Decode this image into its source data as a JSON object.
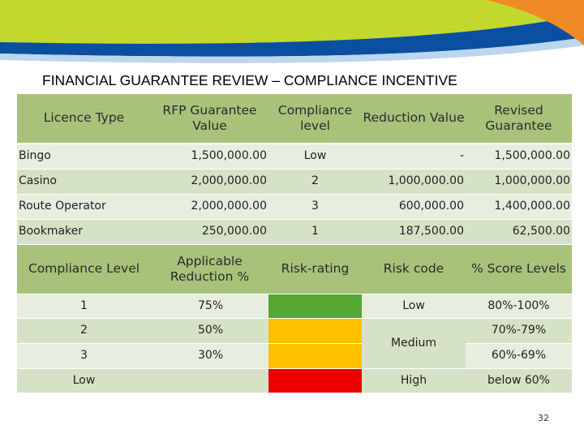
{
  "page": {
    "title": "FINANCIAL GUARANTEE REVIEW – COMPLIANCE INCENTIVE",
    "page_number": "32",
    "banner_colors": {
      "green": "#c3d82c",
      "blue": "#0a4fa0",
      "orange": "#f08a24"
    }
  },
  "table1": {
    "headers": [
      "Licence Type",
      "RFP Guarantee Value",
      "Compliance level",
      "Reduction Value",
      "Revised Guarantee"
    ],
    "rows": [
      [
        "Bingo",
        "1,500,000.00",
        "Low",
        "-",
        "1,500,000.00"
      ],
      [
        "Casino",
        "2,000,000.00",
        "2",
        "1,000,000.00",
        "1,000,000.00"
      ],
      [
        "Route Operator",
        "2,000,000.00",
        "3",
        "600,000.00",
        "1,400,000.00"
      ],
      [
        "Bookmaker",
        "250,000.00",
        "1",
        "187,500.00",
        "62,500.00"
      ]
    ]
  },
  "table2": {
    "headers": [
      "Compliance Level",
      "Applicable Reduction %",
      "Risk-rating",
      "Risk code",
      "% Score Levels"
    ],
    "rows": [
      {
        "level": "1",
        "reduction": "75%",
        "rating_color": "#55a832"
      },
      {
        "level": "2",
        "reduction": "50%",
        "rating_color": "#ffc000"
      },
      {
        "level": "3",
        "reduction": "30%",
        "rating_color": "#ffc000"
      },
      {
        "level": "Low",
        "reduction": "",
        "rating_color": "#ee0000"
      }
    ],
    "risk_codes": [
      "Low",
      "Medium",
      "High"
    ],
    "score_levels": [
      "80%-100%",
      "70%-79%",
      "60%-69%",
      "below 60%"
    ]
  }
}
